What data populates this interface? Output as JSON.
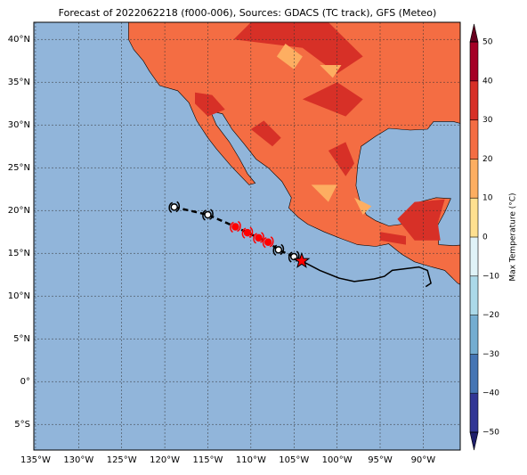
{
  "title": "Forecast of 2022062218 (f000-006), Sources: GDACS (TC track), GFS (Meteo)",
  "map": {
    "xlim": [
      -135.2,
      -85.7
    ],
    "ylim": [
      -8,
      42
    ],
    "xticks": [
      {
        "value": -135,
        "label": "135°W"
      },
      {
        "value": -130,
        "label": "130°W"
      },
      {
        "value": -125,
        "label": "125°W"
      },
      {
        "value": -120,
        "label": "120°W"
      },
      {
        "value": -115,
        "label": "115°W"
      },
      {
        "value": -110,
        "label": "110°W"
      },
      {
        "value": -105,
        "label": "105°W"
      },
      {
        "value": -100,
        "label": "100°W"
      },
      {
        "value": -95,
        "label": "95°W"
      },
      {
        "value": -90,
        "label": "90°W"
      }
    ],
    "yticks": [
      {
        "value": -5,
        "label": "5°S"
      },
      {
        "value": 0,
        "label": "0°"
      },
      {
        "value": 5,
        "label": "5°N"
      },
      {
        "value": 10,
        "label": "10°N"
      },
      {
        "value": 15,
        "label": "15°N"
      },
      {
        "value": 20,
        "label": "20°N"
      },
      {
        "value": 25,
        "label": "25°N"
      },
      {
        "value": 30,
        "label": "30°N"
      },
      {
        "value": 35,
        "label": "35°N"
      },
      {
        "value": 40,
        "label": "40°N"
      }
    ],
    "grid": true,
    "track": {
      "lon": [
        -118.9,
        -115,
        -111.8,
        -110.4,
        -109.1,
        -108,
        -106.8,
        -105
      ],
      "lat": [
        20.4,
        19.5,
        18.1,
        17.4,
        16.8,
        16.3,
        15.4,
        14.6
      ],
      "colors": [
        "#000000",
        "#000000",
        "#ff0000",
        "#ff0000",
        "#ff0000",
        "#ff0000",
        "#000000",
        "#000000"
      ]
    },
    "current": {
      "lon": -104.1,
      "lat": 14.1,
      "color": "#ff0000"
    },
    "observed_track": {
      "lon": [
        -104.1,
        -102,
        -99.8,
        -98,
        -95.7,
        -94.5,
        -93.6,
        -90.5,
        -89.5,
        -89.1,
        -89.7
      ],
      "lat": [
        14.1,
        13,
        12.1,
        11.7,
        12,
        12.3,
        13,
        13.4,
        13,
        11.5,
        11.1
      ]
    }
  },
  "colorbar": {
    "label": "Max Temperature (°C)",
    "lim": [
      -50,
      50
    ],
    "ticks": [
      {
        "value": -50,
        "label": "−50"
      },
      {
        "value": -40,
        "label": "−40"
      },
      {
        "value": -30,
        "label": "−30"
      },
      {
        "value": -20,
        "label": "−20"
      },
      {
        "value": -10,
        "label": "−10"
      },
      0,
      10,
      20,
      30,
      40,
      50
    ],
    "colors": [
      "#313695",
      "#4575b4",
      "#74add1",
      "#abd9e9",
      "#e0f3f8",
      "#fee090",
      "#fdae61",
      "#f46d43",
      "#d73027",
      "#a50026"
    ],
    "extend_colors": [
      "#1f1f6b",
      "#67001f"
    ]
  }
}
